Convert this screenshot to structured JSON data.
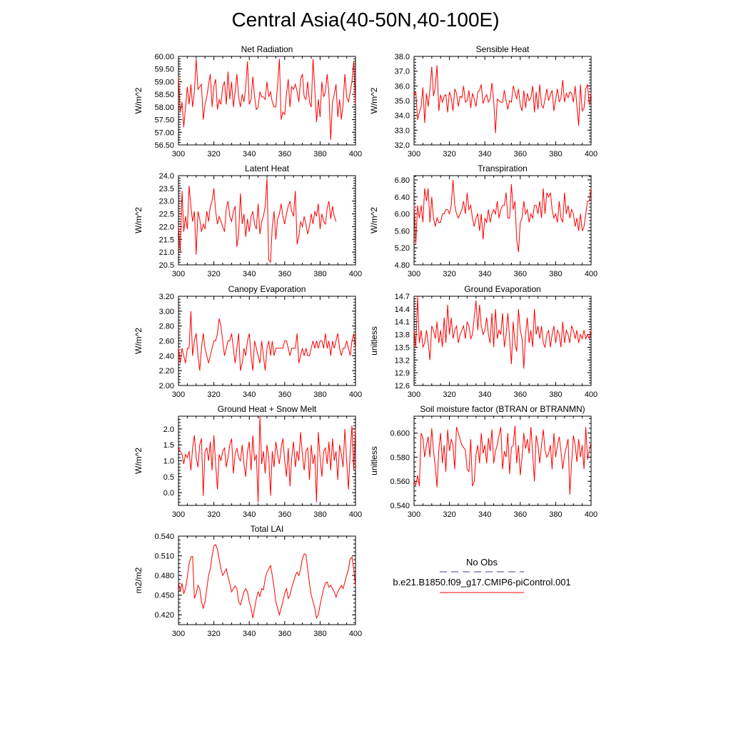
{
  "title": "Central Asia(40-50N,40-100E)",
  "colors": {
    "series": "#ff0000",
    "obs": "#3c3c9c",
    "axis": "#000000"
  },
  "chart_data": [
    {
      "type": "line",
      "title": "Net Radiation",
      "ylabel": "W/m^2",
      "xlim": [
        300,
        400
      ],
      "ylim": [
        56.5,
        60.0
      ],
      "xticks": [
        "300",
        "320",
        "340",
        "360",
        "380",
        "400"
      ],
      "yticks": [
        "56.50",
        "57.00",
        "57.50",
        "58.00",
        "58.50",
        "59.00",
        "59.50",
        "60.00"
      ],
      "x_start": 300,
      "values": [
        59.2,
        57.8,
        58.2,
        57.2,
        58.0,
        58.8,
        58.1,
        58.9,
        58.0,
        58.6,
        59.9,
        58.7,
        58.8,
        58.9,
        57.5,
        58.1,
        58.4,
        58.9,
        59.3,
        58.0,
        58.8,
        59.1,
        57.9,
        58.3,
        58.1,
        58.8,
        59.0,
        58.1,
        59.4,
        58.3,
        59.0,
        58.0,
        58.6,
        59.3,
        58.4,
        58.0,
        58.5,
        58.2,
        58.8,
        59.8,
        58.1,
        58.3,
        59.2,
        58.4,
        57.9,
        58.0,
        58.6,
        58.4,
        58.4,
        58.3,
        59.0,
        58.4,
        58.6,
        58.2,
        58.0,
        58.0,
        58.9,
        59.9,
        57.5,
        57.8,
        57.7,
        58.5,
        59.1,
        58.0,
        58.8,
        58.7,
        58.9,
        58.6,
        58.2,
        59.1,
        59.3,
        58.4,
        58.3,
        59.0,
        58.2,
        58.0,
        59.9,
        58.7,
        57.4,
        58.3,
        57.6,
        59.0,
        58.4,
        58.6,
        59.3,
        58.5,
        56.7,
        58.2,
        58.5,
        58.9,
        57.6,
        58.3,
        57.5,
        58.1,
        59.3,
        58.4,
        58.2,
        58.6,
        59.0,
        59.8,
        58.1
      ]
    },
    {
      "type": "line",
      "title": "Sensible Heat",
      "ylabel": "W/m^2",
      "xlim": [
        300,
        400
      ],
      "ylim": [
        32.0,
        38.0
      ],
      "xticks": [
        "300",
        "320",
        "340",
        "360",
        "380",
        "400"
      ],
      "yticks": [
        "32.0",
        "33.0",
        "34.0",
        "35.0",
        "36.0",
        "37.0",
        "38.0"
      ],
      "x_start": 300,
      "values": [
        35.4,
        35.6,
        33.7,
        34.2,
        34.6,
        35.9,
        33.5,
        35.5,
        34.6,
        35.8,
        37.3,
        35.3,
        36.0,
        37.4,
        34.3,
        35.4,
        34.9,
        35.3,
        35.4,
        34.2,
        35.6,
        35.2,
        34.3,
        35.8,
        35.5,
        34.6,
        35.3,
        35.2,
        36.0,
        34.9,
        35.0,
        35.7,
        34.5,
        35.5,
        35.1,
        34.6,
        35.6,
        35.7,
        36.1,
        34.8,
        35.2,
        35.4,
        34.9,
        35.1,
        36.2,
        35.0,
        32.8,
        35.1,
        35.0,
        34.9,
        34.9,
        35.7,
        35.0,
        34.4,
        35.0,
        34.9,
        36.0,
        35.6,
        35.1,
        35.8,
        34.7,
        34.3,
        35.7,
        34.5,
        35.5,
        35.0,
        35.2,
        36.0,
        34.2,
        35.6,
        34.4,
        36.1,
        34.7,
        34.5,
        35.1,
        35.8,
        35.0,
        35.4,
        35.7,
        34.3,
        35.1,
        35.8,
        34.9,
        35.2,
        36.4,
        34.9,
        35.5,
        35.2,
        35.6,
        35.5,
        34.9,
        36.0,
        34.6,
        33.3,
        36.1,
        34.3,
        34.5,
        35.8,
        36.1,
        34.7,
        35.5
      ]
    },
    {
      "type": "line",
      "title": "Latent Heat",
      "ylabel": "W/m^2",
      "xlim": [
        300,
        400
      ],
      "ylim": [
        20.5,
        24.0
      ],
      "xticks": [
        "300",
        "320",
        "340",
        "360",
        "380",
        "400"
      ],
      "yticks": [
        "20.5",
        "21.0",
        "21.5",
        "22.0",
        "22.5",
        "23.0",
        "23.5",
        "24.0"
      ],
      "x_start": 300,
      "values": [
        22.0,
        21.0,
        23.4,
        21.8,
        22.4,
        21.9,
        23.6,
        22.8,
        22.2,
        22.6,
        20.9,
        22.6,
        22.3,
        21.8,
        22.1,
        21.9,
        22.6,
        22.2,
        22.8,
        23.0,
        23.5,
        22.6,
        22.1,
        22.4,
        22.2,
        22.0,
        21.8,
        22.7,
        23.0,
        22.4,
        22.2,
        22.6,
        22.8,
        21.2,
        21.7,
        23.3,
        22.1,
        22.5,
        21.6,
        22.3,
        21.8,
        22.4,
        22.6,
        22.1,
        21.9,
        22.9,
        21.7,
        22.2,
        22.4,
        22.8,
        23.9,
        20.7,
        20.6,
        22.0,
        22.6,
        21.5,
        22.3,
        22.5,
        22.9,
        22.4,
        22.1,
        22.5,
        22.8,
        23.0,
        22.6,
        22.4,
        23.4,
        21.3,
        21.6,
        22.2,
        22.0,
        22.4,
        22.1,
        21.7,
        22.0,
        22.5,
        22.1,
        22.6,
        22.4,
        22.9,
        21.9,
        22.5,
        22.2,
        22.1,
        22.7,
        23.0,
        22.3,
        22.8,
        22.4,
        22.2
      ]
    },
    {
      "type": "line",
      "title": "Transpiration",
      "ylabel": "W/m^2",
      "xlim": [
        300,
        400
      ],
      "ylim": [
        4.8,
        6.9
      ],
      "xticks": [
        "300",
        "320",
        "340",
        "360",
        "380",
        "400"
      ],
      "yticks": [
        "4.80",
        "5.20",
        "5.60",
        "6.00",
        "6.40",
        "6.80"
      ],
      "x_start": 300,
      "values": [
        6.2,
        5.3,
        6.2,
        5.9,
        6.2,
        5.8,
        6.6,
        6.3,
        6.6,
        5.8,
        6.4,
        5.9,
        5.7,
        5.9,
        5.8,
        5.8,
        6.0,
        6.0,
        6.1,
        6.1,
        6.0,
        6.2,
        6.8,
        6.2,
        6.0,
        5.9,
        6.0,
        6.1,
        6.3,
        6.0,
        6.5,
        6.1,
        6.2,
        5.9,
        5.7,
        5.9,
        6.0,
        5.6,
        6.0,
        5.4,
        5.9,
        5.8,
        6.1,
        5.8,
        6.0,
        6.1,
        6.0,
        6.3,
        5.9,
        6.1,
        6.2,
        6.2,
        6.5,
        5.9,
        5.9,
        6.7,
        6.1,
        6.3,
        5.4,
        5.1,
        5.8,
        5.9,
        6.3,
        6.0,
        6.1,
        5.8,
        6.0,
        5.9,
        6.2,
        6.2,
        6.0,
        6.3,
        5.9,
        6.6,
        6.0,
        6.5,
        6.4,
        6.5,
        6.1,
        5.9,
        6.0,
        5.8,
        6.3,
        5.9,
        5.8,
        6.5,
        6.0,
        6.2,
        5.9,
        6.1,
        6.0,
        5.7,
        5.9,
        5.6,
        6.0,
        5.6,
        5.7,
        6.0,
        6.3,
        6.3,
        6.6
      ]
    },
    {
      "type": "line",
      "title": "Canopy Evaporation",
      "ylabel": "W/m^2",
      "xlim": [
        300,
        400
      ],
      "ylim": [
        2.0,
        3.2
      ],
      "xticks": [
        "300",
        "320",
        "340",
        "360",
        "380",
        "400"
      ],
      "yticks": [
        "2.00",
        "2.20",
        "2.40",
        "2.60",
        "2.80",
        "3.00",
        "3.20"
      ],
      "x_start": 300,
      "values": [
        2.5,
        2.3,
        2.5,
        2.4,
        2.3,
        2.5,
        2.5,
        3.0,
        2.4,
        2.6,
        2.7,
        2.4,
        2.2,
        2.5,
        2.7,
        2.5,
        2.4,
        2.3,
        2.4,
        2.5,
        2.6,
        2.6,
        2.7,
        2.9,
        2.8,
        2.6,
        2.4,
        2.5,
        2.6,
        2.6,
        2.7,
        2.5,
        2.3,
        2.5,
        2.7,
        2.2,
        2.3,
        2.5,
        2.4,
        2.6,
        2.7,
        2.4,
        2.2,
        2.6,
        2.5,
        2.4,
        2.3,
        2.6,
        2.4,
        2.2,
        2.5,
        2.6,
        2.4,
        2.6,
        2.4,
        2.5,
        2.5,
        2.5,
        2.5,
        2.5,
        2.6,
        2.6,
        2.5,
        2.4,
        2.5,
        2.5,
        2.5,
        2.7,
        2.3,
        2.4,
        2.5,
        2.4,
        2.5,
        2.4,
        2.4,
        2.5,
        2.6,
        2.5,
        2.6,
        2.5,
        2.6,
        2.6,
        2.5,
        2.7,
        2.5,
        2.6,
        2.4,
        2.6,
        2.5,
        2.6,
        2.7,
        2.5,
        2.4,
        2.5,
        2.5,
        2.6,
        2.5,
        2.4,
        2.6,
        2.7,
        2.5
      ]
    },
    {
      "type": "line",
      "title": "Ground Evaporation",
      "ylabel": "unitless",
      "xlim": [
        300,
        400
      ],
      "ylim": [
        12.6,
        14.7
      ],
      "xticks": [
        "300",
        "320",
        "340",
        "360",
        "380",
        "400"
      ],
      "yticks": [
        "12.6",
        "12.9",
        "13.2",
        "13.5",
        "13.8",
        "14.1",
        "14.4",
        "14.7"
      ],
      "x_start": 300,
      "values": [
        13.9,
        13.5,
        14.7,
        13.6,
        13.9,
        13.5,
        13.6,
        13.9,
        13.6,
        13.2,
        14.0,
        13.9,
        13.7,
        14.1,
        13.6,
        13.9,
        13.5,
        14.2,
        13.6,
        14.5,
        13.8,
        14.2,
        13.7,
        13.9,
        14.0,
        13.6,
        13.8,
        13.9,
        14.0,
        13.7,
        14.1,
        14.0,
        13.7,
        13.8,
        14.2,
        14.6,
        13.9,
        14.5,
        14.0,
        13.8,
        13.9,
        14.2,
        13.8,
        13.6,
        14.3,
        13.5,
        14.4,
        13.7,
        13.9,
        13.8,
        14.3,
        13.5,
        13.8,
        14.3,
        13.7,
        13.1,
        14.1,
        13.6,
        13.4,
        14.4,
        13.9,
        13.7,
        13.0,
        13.8,
        14.2,
        13.6,
        13.9,
        13.5,
        14.4,
        13.8,
        14.0,
        13.7,
        14.0,
        13.6,
        13.5,
        13.8,
        13.9,
        13.5,
        13.8,
        14.0,
        13.6,
        13.9,
        13.8,
        13.5,
        14.1,
        13.6,
        13.9,
        13.8,
        13.6,
        14.0,
        13.9,
        13.7,
        13.9,
        13.6,
        13.8,
        13.7,
        13.9,
        13.7,
        13.8,
        13.7,
        13.9
      ]
    },
    {
      "type": "line",
      "title": "Ground Heat + Snow Melt",
      "ylabel": "W/m^2",
      "xlim": [
        300,
        400
      ],
      "ylim": [
        -0.4,
        2.4
      ],
      "xticks": [
        "300",
        "320",
        "340",
        "360",
        "380",
        "400"
      ],
      "yticks": [
        "0.0",
        "0.5",
        "1.0",
        "1.5",
        "2.0"
      ],
      "x_start": 300,
      "values": [
        1.4,
        1.3,
        1.2,
        0.9,
        1.2,
        1.1,
        1.3,
        0.7,
        1.4,
        1.8,
        1.1,
        0.8,
        1.5,
        1.7,
        -0.1,
        1.3,
        1.4,
        1.0,
        1.6,
        0.7,
        1.8,
        0.9,
        0.1,
        1.2,
        1.0,
        1.3,
        1.4,
        0.8,
        1.1,
        1.5,
        1.7,
        0.6,
        1.2,
        1.4,
        1.1,
        1.0,
        1.5,
        0.9,
        0.5,
        1.3,
        1.6,
        0.7,
        1.8,
        1.0,
        1.2,
        -0.3,
        2.4,
        0.9,
        1.3,
        0.6,
        1.5,
        1.1,
        -0.1,
        1.3,
        0.8,
        1.6,
        1.2,
        0.9,
        1.4,
        1.7,
        1.0,
        0.5,
        1.4,
        0.2,
        1.1,
        1.6,
        0.8,
        1.3,
        1.0,
        1.9,
        1.2,
        0.7,
        1.3,
        1.4,
        0.4,
        1.5,
        0.9,
        1.2,
        -0.3,
        1.9,
        1.1,
        0.5,
        1.3,
        1.4,
        0.9,
        1.6,
        0.7,
        1.7,
        1.0,
        1.3,
        0.4,
        1.5,
        1.2,
        0.8,
        2.0,
        1.0,
        0.1,
        1.3,
        2.1,
        0.7,
        2.0
      ]
    },
    {
      "type": "line",
      "title": "Soil moisture factor (BTRAN or BTRANMN)",
      "ylabel": "unitless",
      "xlim": [
        300,
        400
      ],
      "ylim": [
        0.54,
        0.614
      ],
      "xticks": [
        "300",
        "320",
        "340",
        "360",
        "380",
        "400"
      ],
      "yticks": [
        "0.540",
        "0.560",
        "0.580",
        "0.600"
      ],
      "x_start": 300,
      "values": [
        0.56,
        0.557,
        0.565,
        0.556,
        0.6,
        0.596,
        0.58,
        0.59,
        0.597,
        0.58,
        0.604,
        0.585,
        0.572,
        0.555,
        0.586,
        0.6,
        0.575,
        0.59,
        0.568,
        0.603,
        0.585,
        0.595,
        0.59,
        0.57,
        0.605,
        0.6,
        0.595,
        0.59,
        0.588,
        0.586,
        0.57,
        0.568,
        0.595,
        0.556,
        0.56,
        0.582,
        0.59,
        0.575,
        0.6,
        0.583,
        0.59,
        0.575,
        0.596,
        0.585,
        0.603,
        0.575,
        0.585,
        0.59,
        0.598,
        0.605,
        0.57,
        0.585,
        0.58,
        0.6,
        0.566,
        0.588,
        0.59,
        0.606,
        0.575,
        0.59,
        0.565,
        0.58,
        0.6,
        0.587,
        0.595,
        0.583,
        0.605,
        0.583,
        0.56,
        0.598,
        0.59,
        0.575,
        0.59,
        0.603,
        0.586,
        0.58,
        0.583,
        0.59,
        0.57,
        0.6,
        0.58,
        0.59,
        0.597,
        0.585,
        0.57,
        0.582,
        0.588,
        0.595,
        0.549,
        0.575,
        0.598,
        0.59,
        0.576,
        0.595,
        0.58,
        0.59,
        0.57,
        0.605,
        0.578,
        0.586,
        0.592
      ]
    },
    {
      "type": "line",
      "title": "Total LAI",
      "ylabel": "m2/m2",
      "xlim": [
        300,
        400
      ],
      "ylim": [
        0.405,
        0.54
      ],
      "xticks": [
        "300",
        "320",
        "340",
        "360",
        "380",
        "400"
      ],
      "yticks": [
        "0.420",
        "0.450",
        "0.480",
        "0.510",
        "0.540"
      ],
      "x_start": 300,
      "values": [
        0.47,
        0.455,
        0.468,
        0.452,
        0.46,
        0.478,
        0.498,
        0.508,
        0.509,
        0.445,
        0.452,
        0.465,
        0.46,
        0.44,
        0.43,
        0.44,
        0.46,
        0.48,
        0.49,
        0.51,
        0.525,
        0.527,
        0.52,
        0.505,
        0.49,
        0.48,
        0.485,
        0.49,
        0.478,
        0.468,
        0.455,
        0.46,
        0.464,
        0.46,
        0.44,
        0.435,
        0.445,
        0.455,
        0.46,
        0.455,
        0.44,
        0.43,
        0.415,
        0.43,
        0.445,
        0.455,
        0.448,
        0.46,
        0.458,
        0.475,
        0.485,
        0.49,
        0.495,
        0.48,
        0.462,
        0.44,
        0.43,
        0.42,
        0.43,
        0.44,
        0.453,
        0.46,
        0.445,
        0.45,
        0.462,
        0.47,
        0.48,
        0.485,
        0.48,
        0.49,
        0.505,
        0.513,
        0.512,
        0.49,
        0.468,
        0.45,
        0.44,
        0.43,
        0.415,
        0.42,
        0.435,
        0.448,
        0.46,
        0.468,
        0.47,
        0.462,
        0.465,
        0.46,
        0.455,
        0.447,
        0.455,
        0.46,
        0.465,
        0.46,
        0.47,
        0.48,
        0.49,
        0.505,
        0.508,
        0.49,
        0.463
      ]
    }
  ],
  "legend": {
    "obs_label": "No Obs",
    "case_label": "b.e21.B1850.f09_g17.CMIP6-piControl.001"
  }
}
